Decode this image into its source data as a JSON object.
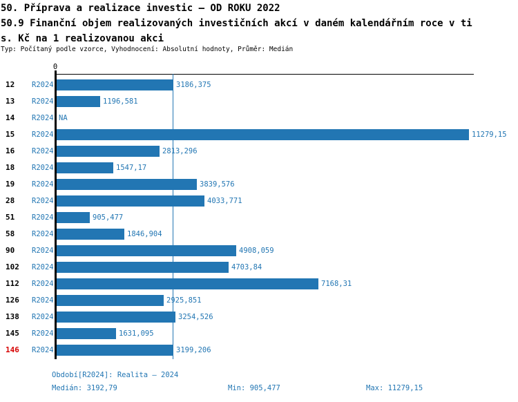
{
  "header": {
    "title_line1": "50. Příprava a realizace investic – OD ROKU 2022",
    "title_line2": "50.9 Finanční objem realizovaných investičních akcí v daném kalendářním roce v ti",
    "title_line3": "s. Kč na 1 realizovanou akci",
    "meta": "Typ: Počítaný podle vzorce, Vyhodnocení: Absolutní hodnoty, Průměr: Medián"
  },
  "colors": {
    "bar": "#2276b3",
    "blue_text": "#2276b3",
    "median_line": "#2276b3",
    "highlight_red": "#d60000",
    "axis_black": "#000000"
  },
  "chart_data": {
    "type": "bar",
    "orientation": "horizontal",
    "title": "50.9 Finanční objem realizovaných investičních akcí v daném kalendářním roce v tis. Kč na 1 realizovanou akci",
    "zero_tick_label": "0",
    "series_label": "R2024",
    "categories": [
      "12",
      "13",
      "14",
      "15",
      "16",
      "18",
      "19",
      "28",
      "51",
      "58",
      "90",
      "102",
      "112",
      "126",
      "138",
      "145",
      "146"
    ],
    "values": [
      3186.375,
      1196.581,
      null,
      11279.15,
      2813.296,
      1547.17,
      3839.576,
      4033.771,
      905.477,
      1846.904,
      4908.059,
      4703.84,
      7168.31,
      2925.851,
      3254.526,
      1631.095,
      3199.206
    ],
    "value_labels": [
      "3186,375",
      "1196,581",
      "NA",
      "11279,15",
      "2813,296",
      "1547,17",
      "3839,576",
      "4033,771",
      "905,477",
      "1846,904",
      "4908,059",
      "4703,84",
      "7168,31",
      "2925,851",
      "3254,526",
      "1631,095",
      "3199,206"
    ],
    "highlighted_category": "146",
    "median_value": 3192.79,
    "xlim": [
      0,
      11279.15
    ],
    "grid": false,
    "legend": false
  },
  "footer": {
    "period": "Období[R2024]: Realita – 2024",
    "median": "Medián: 3192,79",
    "min": "Min: 905,477",
    "max": "Max: 11279,15"
  }
}
